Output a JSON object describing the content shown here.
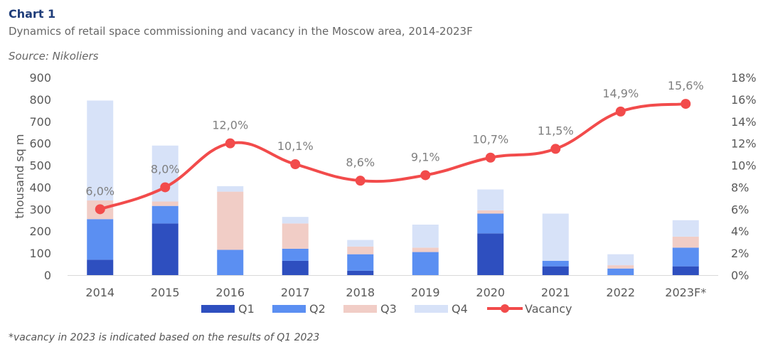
{
  "header": {
    "chart_number": "Chart 1",
    "subtitle": "Dynamics of retail space commissioning and vacancy in the Moscow area, 2014-2023F",
    "source": "Source: Nikoliers"
  },
  "footnote": "*vacancy in 2023 is indicated based on the results of Q1 2023",
  "colors": {
    "Q1": "#2e4fbf",
    "Q2": "#5b8ff2",
    "Q3": "#f1cdc6",
    "Q4": "#d7e2f8",
    "Vacancy": "#f24b4b"
  },
  "chart_data": {
    "type": "bar",
    "stacked": true,
    "categories": [
      "2014",
      "2015",
      "2016",
      "2017",
      "2018",
      "2019",
      "2020",
      "2021",
      "2022",
      "2023F*"
    ],
    "series": [
      {
        "name": "Q1",
        "values": [
          70,
          235,
          0,
          65,
          20,
          0,
          190,
          40,
          0,
          40
        ]
      },
      {
        "name": "Q2",
        "values": [
          185,
          80,
          115,
          55,
          75,
          105,
          90,
          25,
          30,
          85
        ]
      },
      {
        "name": "Q3",
        "values": [
          85,
          20,
          265,
          115,
          35,
          20,
          15,
          0,
          15,
          50
        ]
      },
      {
        "name": "Q4",
        "values": [
          455,
          255,
          25,
          30,
          30,
          105,
          95,
          215,
          50,
          75
        ]
      }
    ],
    "line_series": {
      "name": "Vacancy",
      "values": [
        6.0,
        8.0,
        12.0,
        10.1,
        8.6,
        9.1,
        10.7,
        11.5,
        14.9,
        15.6
      ],
      "labels": [
        "6,0%",
        "8,0%",
        "12,0%",
        "10,1%",
        "8,6%",
        "9,1%",
        "10,7%",
        "11,5%",
        "14,9%",
        "15,6%"
      ]
    },
    "ylabel": "thousand sq m",
    "ylim": [
      0,
      900
    ],
    "y_ticks": [
      "0",
      "100",
      "200",
      "300",
      "400",
      "500",
      "600",
      "700",
      "800",
      "900"
    ],
    "y2lim": [
      0,
      18
    ],
    "y2_ticks": [
      "0%",
      "2%",
      "4%",
      "6%",
      "8%",
      "10%",
      "12%",
      "14%",
      "16%",
      "18%"
    ],
    "legend": [
      "Q1",
      "Q2",
      "Q3",
      "Q4",
      "Vacancy"
    ],
    "legend_position": "bottom",
    "grid": false
  }
}
